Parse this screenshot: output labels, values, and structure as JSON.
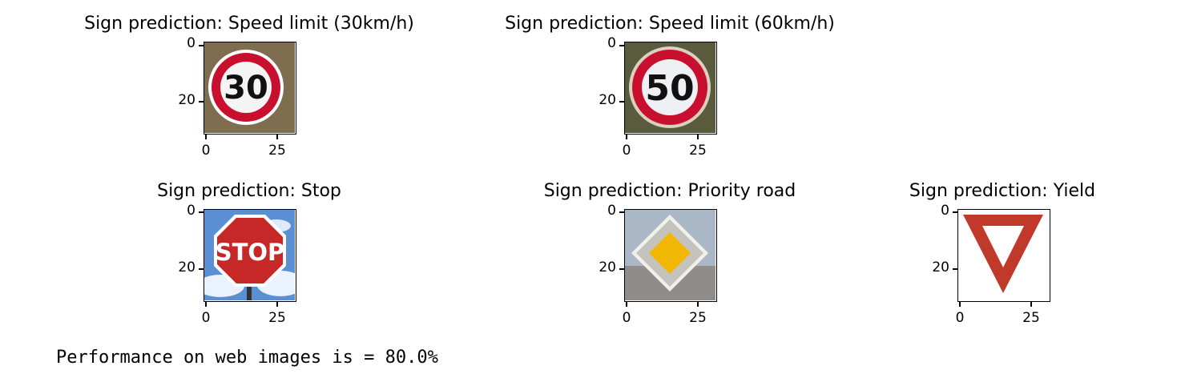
{
  "figure": {
    "panels": [
      {
        "title": "Sign prediction: Speed limit (30km/h)",
        "icon": "speed-limit-30-sign",
        "sign_text": "30"
      },
      {
        "title": "Sign prediction: Speed limit (60km/h)",
        "icon": "speed-limit-50-sign",
        "sign_text": "50"
      },
      {
        "title": "Sign prediction: Stop",
        "icon": "stop-sign",
        "sign_text": "STOP"
      },
      {
        "title": "Sign prediction: Priority road",
        "icon": "priority-road-sign",
        "sign_text": ""
      },
      {
        "title": "Sign prediction: Yield",
        "icon": "yield-sign",
        "sign_text": ""
      }
    ],
    "y_ticks": [
      "0",
      "20"
    ],
    "x_ticks": [
      "0",
      "25"
    ]
  },
  "output": {
    "text": "Performance on web images is = 80.0%"
  },
  "colors": {
    "sign_red": "#c8102e",
    "priority_yellow": "#f2b705",
    "stop_red": "#c62828",
    "sky_blue": "#5b8fd4"
  }
}
